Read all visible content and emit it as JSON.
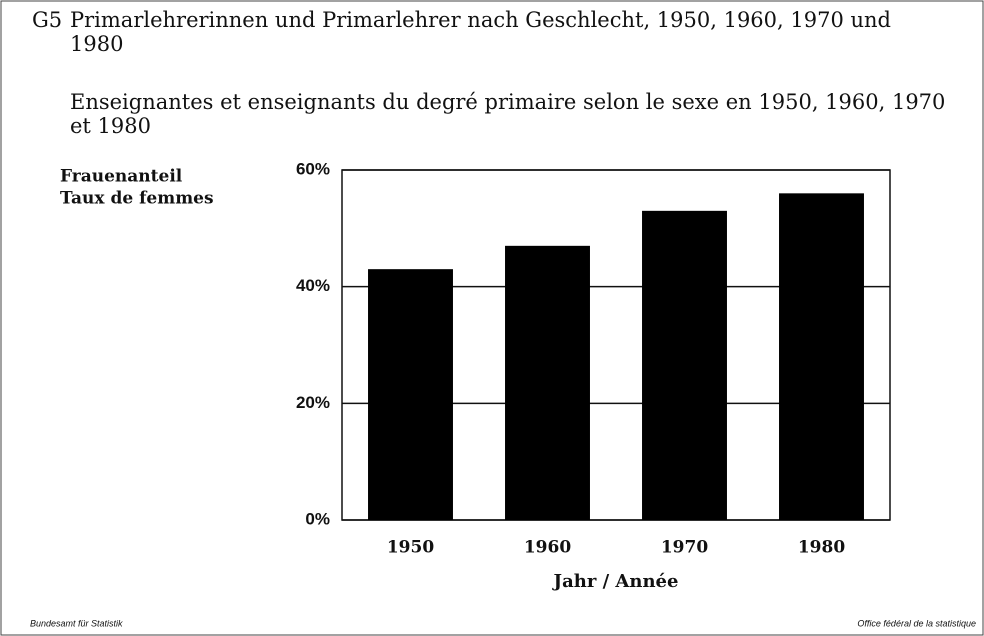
{
  "chart_data": {
    "type": "bar",
    "figure_label": "G5",
    "title": "Primarlehrerinnen und Primarlehrer nach Geschlecht, 1950, 1960, 1970 und 1980",
    "subtitle": "Enseignantes et enseignants du degré primaire selon le sexe en 1950, 1960, 1970 et 1980",
    "y_label": [
      "Frauenanteil",
      "Taux de femmes"
    ],
    "x_label": "Jahr / Année",
    "categories": [
      "1950",
      "1960",
      "1970",
      "1980"
    ],
    "values": [
      43,
      47,
      53,
      56
    ],
    "color": "#000000",
    "ylim": [
      0,
      60
    ],
    "yticks": [
      {
        "value": 0,
        "label": "0%"
      },
      {
        "value": 20,
        "label": "20%"
      },
      {
        "value": 40,
        "label": "40%"
      },
      {
        "value": 60,
        "label": "60%"
      }
    ],
    "grid": true,
    "footer_left": "Bundesamt für Statistik",
    "footer_right": "Office fédéral de la statistique"
  }
}
